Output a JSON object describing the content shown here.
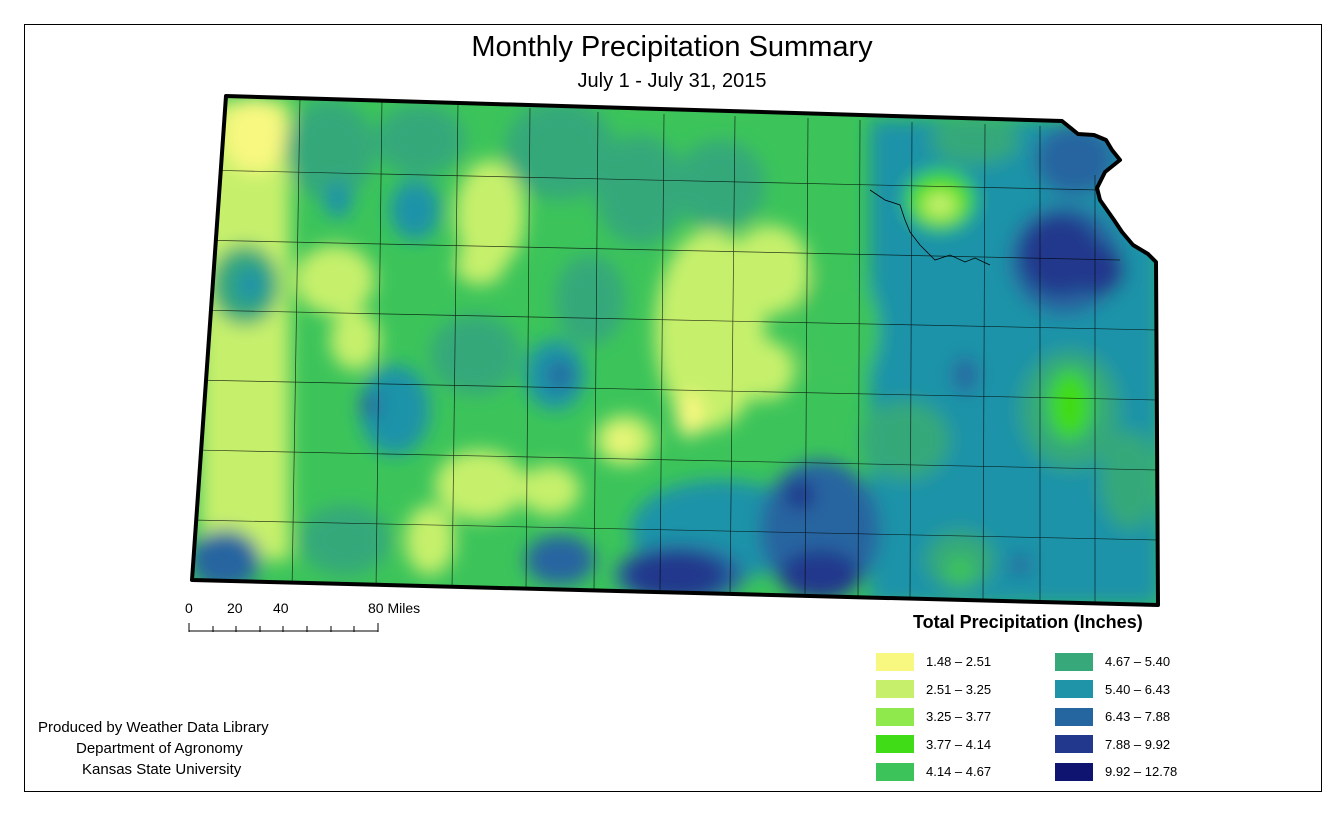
{
  "title": "Monthly Precipitation Summary",
  "subtitle": "July 1 - July 31, 2015",
  "scale_bar": {
    "ticks": [
      "0",
      "20",
      "40",
      "80 Miles"
    ]
  },
  "legend": {
    "title": "Total Precipitation (Inches)",
    "items": [
      {
        "label": "1.48 – 2.51",
        "color": "#f8f880"
      },
      {
        "label": "2.51 – 3.25",
        "color": "#c6f06c"
      },
      {
        "label": "3.25 – 3.77",
        "color": "#8fe84c"
      },
      {
        "label": "3.77 – 4.14",
        "color": "#40dc18"
      },
      {
        "label": "4.14 – 4.67",
        "color": "#3cc45a"
      },
      {
        "label": "4.67 – 5.40",
        "color": "#36a87a"
      },
      {
        "label": "5.40 – 6.43",
        "color": "#1f93a8"
      },
      {
        "label": "6.43 – 7.88",
        "color": "#2565a0"
      },
      {
        "label": "7.88 – 9.92",
        "color": "#21388c"
      },
      {
        "label": "9.92 – 12.78",
        "color": "#0f1470"
      }
    ]
  },
  "credits": {
    "line1": "Produced by Weather Data Library",
    "line2": "Department of Agronomy",
    "line3": "Kansas State University"
  }
}
